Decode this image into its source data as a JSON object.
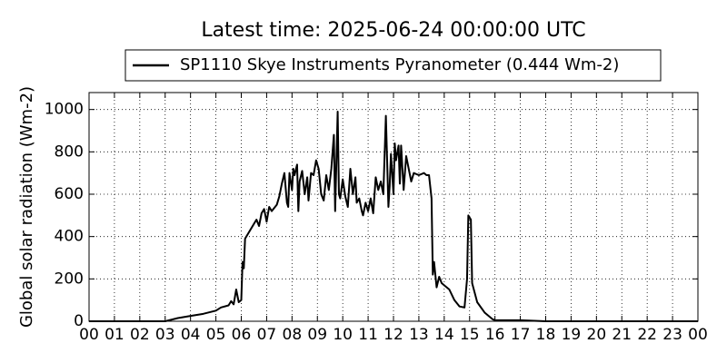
{
  "chart_data": {
    "type": "line",
    "title": "Latest time: 2025-06-24 00:00:00 UTC",
    "ylabel": "Global solar radiation (Wm-2)",
    "legend": "upper center",
    "grid": true,
    "x": [
      0,
      3.0,
      3.5,
      4,
      4.5,
      5,
      5.2,
      5.5,
      5.6,
      5.7,
      5.8,
      5.9,
      6.0,
      6.05,
      6.1,
      6.15,
      6.3,
      6.5,
      6.6,
      6.7,
      6.8,
      6.9,
      7.0,
      7.1,
      7.2,
      7.4,
      7.5,
      7.6,
      7.7,
      7.8,
      7.85,
      7.9,
      8.0,
      8.05,
      8.1,
      8.2,
      8.25,
      8.3,
      8.4,
      8.5,
      8.6,
      8.65,
      8.75,
      8.85,
      8.95,
      9.05,
      9.15,
      9.25,
      9.35,
      9.45,
      9.55,
      9.65,
      9.7,
      9.8,
      9.85,
      9.9,
      10.0,
      10.1,
      10.2,
      10.3,
      10.4,
      10.5,
      10.55,
      10.65,
      10.75,
      10.8,
      10.9,
      11.0,
      11.1,
      11.2,
      11.3,
      11.4,
      11.5,
      11.6,
      11.7,
      11.8,
      11.85,
      11.9,
      12.0,
      12.05,
      12.1,
      12.2,
      12.25,
      12.3,
      12.4,
      12.5,
      12.6,
      12.7,
      12.8,
      13.0,
      13.2,
      13.3,
      13.4,
      13.5,
      13.55,
      13.6,
      13.7,
      13.8,
      13.9,
      14.0,
      14.2,
      14.4,
      14.6,
      14.8,
      14.9,
      14.95,
      15.05,
      15.1,
      15.3,
      15.6,
      15.9,
      16,
      17,
      18,
      24
    ],
    "series": [
      {
        "name": "SP1110 Skye Instruments Pyranometer (0.444 Wm-2)",
        "color": "#000000",
        "values": [
          0,
          0,
          15,
          25,
          35,
          50,
          65,
          75,
          95,
          80,
          150,
          90,
          100,
          280,
          250,
          390,
          420,
          460,
          480,
          450,
          510,
          530,
          470,
          540,
          520,
          550,
          590,
          650,
          700,
          560,
          540,
          700,
          620,
          720,
          690,
          740,
          520,
          660,
          710,
          600,
          680,
          570,
          700,
          690,
          760,
          720,
          600,
          570,
          690,
          620,
          720,
          880,
          520,
          990,
          600,
          580,
          670,
          590,
          540,
          720,
          600,
          680,
          560,
          580,
          520,
          500,
          560,
          520,
          580,
          510,
          680,
          620,
          660,
          600,
          970,
          540,
          640,
          790,
          600,
          840,
          760,
          830,
          650,
          830,
          620,
          780,
          720,
          660,
          700,
          690,
          700,
          690,
          690,
          580,
          220,
          280,
          160,
          210,
          180,
          170,
          150,
          100,
          70,
          65,
          200,
          500,
          480,
          180,
          90,
          40,
          10,
          5,
          5,
          0,
          0
        ]
      }
    ],
    "xlim": [
      0,
      24
    ],
    "xticks": [
      {
        "value": 0,
        "label": "00"
      },
      {
        "value": 1,
        "label": "01"
      },
      {
        "value": 2,
        "label": "02"
      },
      {
        "value": 3,
        "label": "03"
      },
      {
        "value": 4,
        "label": "04"
      },
      {
        "value": 5,
        "label": "05"
      },
      {
        "value": 6,
        "label": "06"
      },
      {
        "value": 7,
        "label": "07"
      },
      {
        "value": 8,
        "label": "08"
      },
      {
        "value": 9,
        "label": "09"
      },
      {
        "value": 10,
        "label": "10"
      },
      {
        "value": 11,
        "label": "11"
      },
      {
        "value": 12,
        "label": "12"
      },
      {
        "value": 13,
        "label": "13"
      },
      {
        "value": 14,
        "label": "14"
      },
      {
        "value": 15,
        "label": "15"
      },
      {
        "value": 16,
        "label": "16"
      },
      {
        "value": 17,
        "label": "17"
      },
      {
        "value": 18,
        "label": "18"
      },
      {
        "value": 19,
        "label": "19"
      },
      {
        "value": 20,
        "label": "20"
      },
      {
        "value": 21,
        "label": "21"
      },
      {
        "value": 22,
        "label": "22"
      },
      {
        "value": 23,
        "label": "23"
      },
      {
        "value": 24,
        "label": "00"
      }
    ],
    "ylim": [
      0,
      1080
    ],
    "yticks": [
      0,
      200,
      400,
      600,
      800,
      1000
    ]
  }
}
